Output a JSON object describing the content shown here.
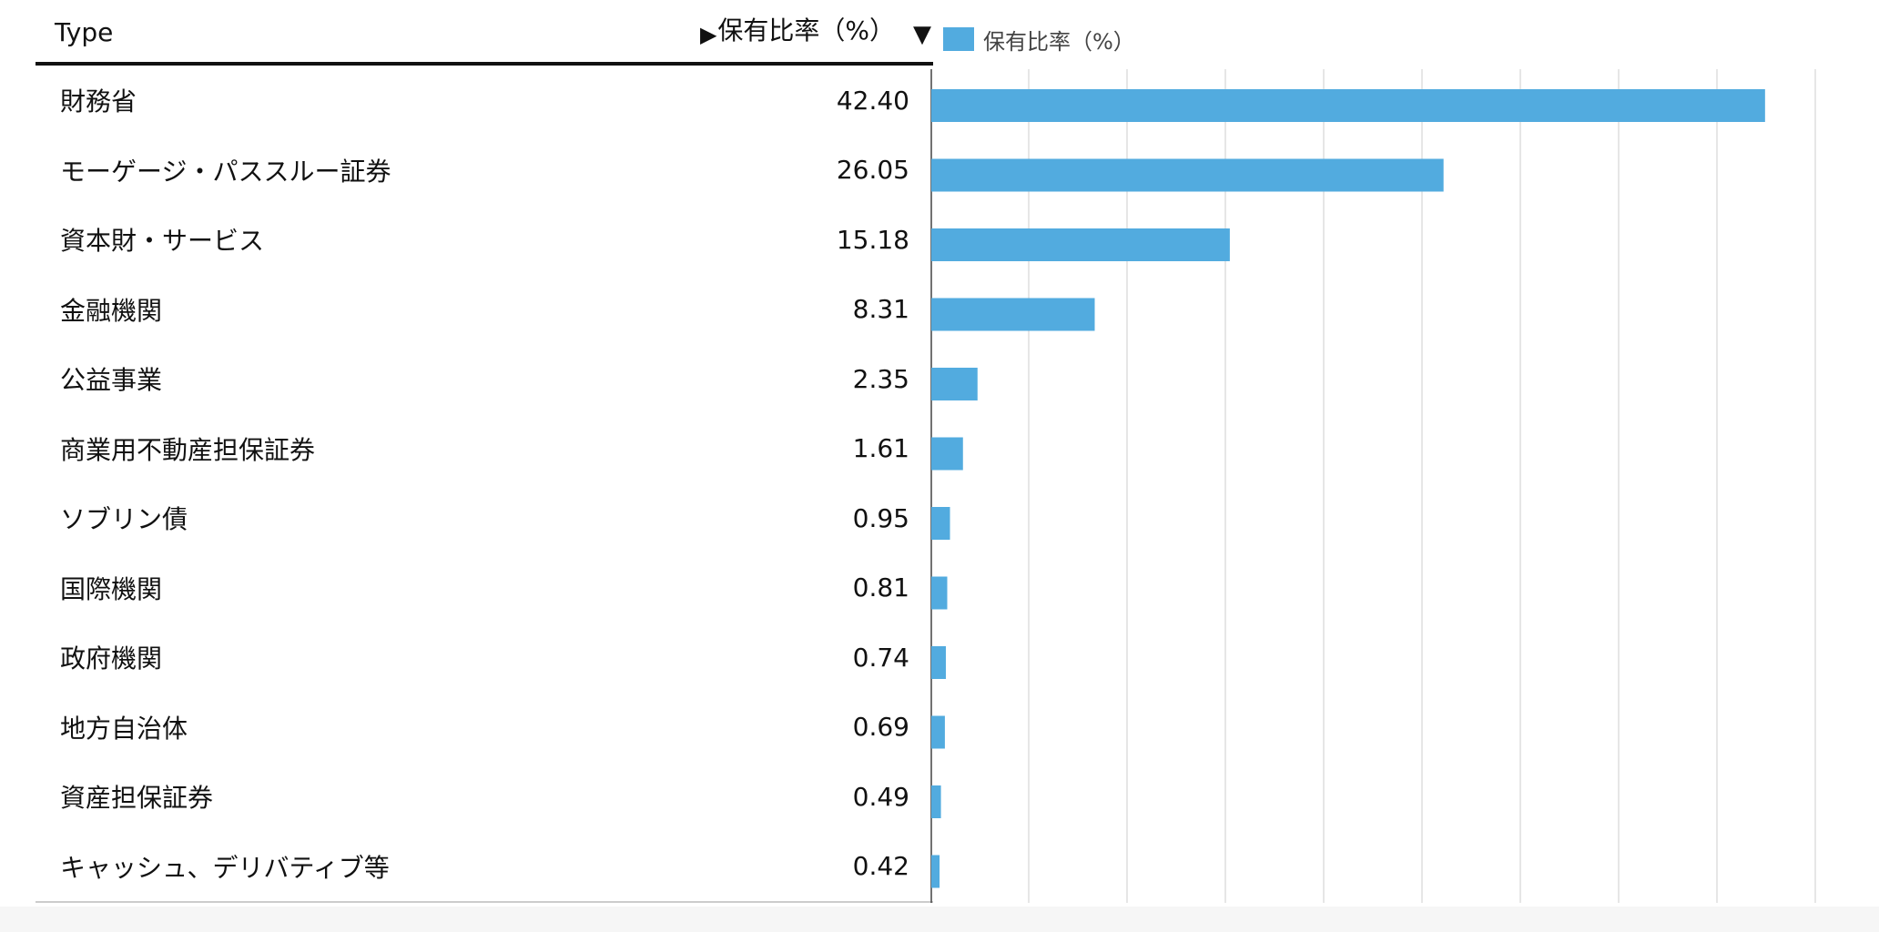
{
  "header": {
    "type_label": "Type",
    "sort_icon": "▶",
    "value_label": "保有比率（%）",
    "filter_icon": "▼"
  },
  "legend": {
    "label": "保有比率（%）",
    "color": "#52abdf"
  },
  "rows": [
    {
      "label": "財務省",
      "value": "42.40"
    },
    {
      "label": "モーゲージ・パススルー証券",
      "value": "26.05"
    },
    {
      "label": "資本財・サービス",
      "value": "15.18"
    },
    {
      "label": "金融機関",
      "value": "8.31"
    },
    {
      "label": "公益事業",
      "value": "2.35"
    },
    {
      "label": "商業用不動産担保証券",
      "value": "1.61"
    },
    {
      "label": "ソブリン債",
      "value": "0.95"
    },
    {
      "label": "国際機関",
      "value": "0.81"
    },
    {
      "label": "政府機関",
      "value": "0.74"
    },
    {
      "label": "地方自治体",
      "value": "0.69"
    },
    {
      "label": "資産担保証券",
      "value": "0.49"
    },
    {
      "label": "キャッシュ、デリバティブ等",
      "value": "0.42"
    }
  ],
  "chart_data": {
    "type": "bar",
    "orientation": "horizontal",
    "categories": [
      "財務省",
      "モーゲージ・パススルー証券",
      "資本財・サービス",
      "金融機関",
      "公益事業",
      "商業用不動産担保証券",
      "ソブリン債",
      "国際機関",
      "政府機関",
      "地方自治体",
      "資産担保証券",
      "キャッシュ、デリバティブ等"
    ],
    "series": [
      {
        "name": "保有比率（%）",
        "values": [
          42.4,
          26.05,
          15.18,
          8.31,
          2.35,
          1.61,
          0.95,
          0.81,
          0.74,
          0.69,
          0.49,
          0.42
        ]
      }
    ],
    "xlim": [
      0,
      45
    ],
    "grid_step": 5,
    "grid": true,
    "legend_position": "top-left",
    "bar_color": "#52abdf"
  }
}
